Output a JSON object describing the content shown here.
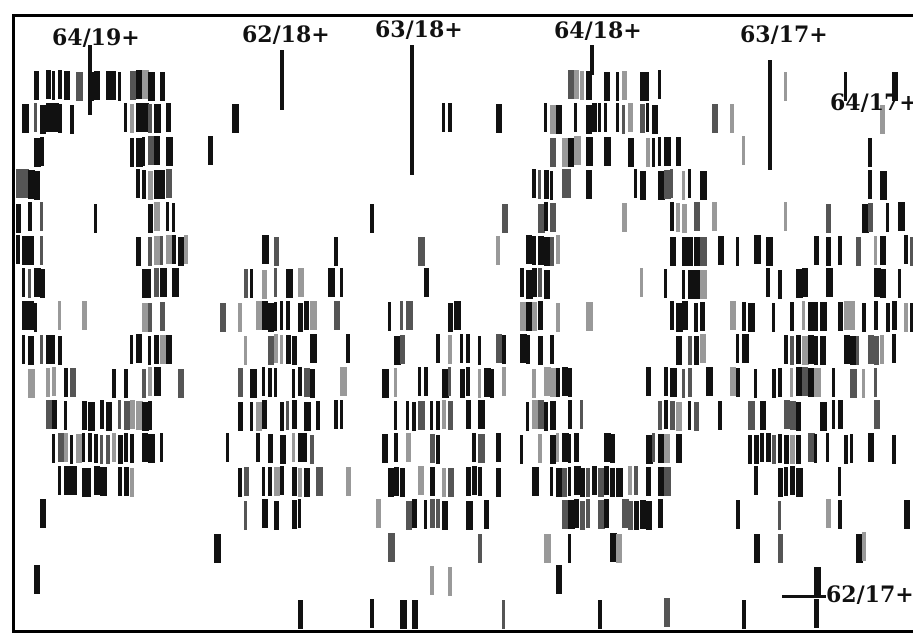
{
  "figure": {
    "labels": [
      {
        "id": "64-19",
        "text": "64/19+"
      },
      {
        "id": "62-18",
        "text": "62/18+"
      },
      {
        "id": "63-18a",
        "text": "63/18+"
      },
      {
        "id": "64-18",
        "text": "64/18+"
      },
      {
        "id": "63-17",
        "text": "63/17+"
      },
      {
        "id": "64-17",
        "text": "64/17+"
      },
      {
        "id": "62-17",
        "text": "62/17+"
      }
    ],
    "colors": {
      "ink": "#111111",
      "background": "#ffffff"
    }
  }
}
